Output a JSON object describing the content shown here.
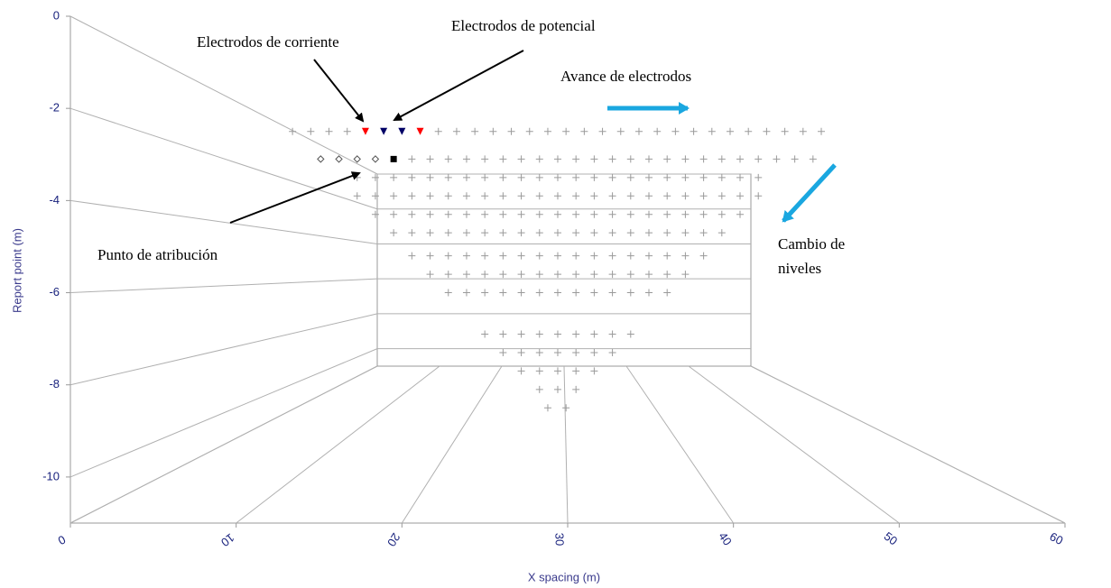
{
  "chart_data": {
    "type": "scatter",
    "xlabel": "X spacing (m)",
    "ylabel": "Report point (m)",
    "xlim": [
      0,
      60
    ],
    "ylim": [
      -11,
      0
    ],
    "xticks": [
      0,
      10,
      20,
      30,
      40,
      50,
      60
    ],
    "yticks": [
      -10,
      -8,
      -6,
      -4,
      -2,
      0
    ],
    "color": "#9a9a9a",
    "series": [
      {
        "y": -2.5,
        "x": [
          13.4,
          14.5,
          15.6,
          16.7,
          22.2,
          23.3,
          24.4,
          25.5,
          26.6,
          27.7,
          28.8,
          29.9,
          31.0,
          32.1,
          33.2,
          34.3,
          35.4,
          36.5,
          37.6,
          38.7,
          39.8,
          40.9,
          42.0,
          43.1,
          44.2,
          45.3
        ]
      },
      {
        "y": -3.1,
        "x": [
          20.6,
          21.7,
          22.8,
          23.9,
          25.0,
          26.1,
          27.2,
          28.3,
          29.4,
          30.5,
          31.6,
          32.7,
          33.8,
          34.9,
          36.0,
          37.1,
          38.2,
          39.3,
          40.4,
          41.5,
          42.6,
          43.7,
          44.8
        ]
      },
      {
        "y": -3.5,
        "x": [
          17.3,
          18.4,
          19.5,
          20.6,
          21.7,
          22.8,
          23.9,
          25.0,
          26.1,
          27.2,
          28.3,
          29.4,
          30.5,
          31.6,
          32.7,
          33.8,
          34.9,
          36.0,
          37.1,
          38.2,
          39.3,
          40.4,
          41.5
        ]
      },
      {
        "y": -3.9,
        "x": [
          17.3,
          18.4,
          19.5,
          20.6,
          21.7,
          22.8,
          23.9,
          25.0,
          26.1,
          27.2,
          28.3,
          29.4,
          30.5,
          31.6,
          32.7,
          33.8,
          34.9,
          36.0,
          37.1,
          38.2,
          39.3,
          40.4,
          41.5
        ]
      },
      {
        "y": -4.3,
        "x": [
          18.4,
          19.5,
          20.6,
          21.7,
          22.8,
          23.9,
          25.0,
          26.1,
          27.2,
          28.3,
          29.4,
          30.5,
          31.6,
          32.7,
          33.8,
          34.9,
          36.0,
          37.1,
          38.2,
          39.3,
          40.4
        ]
      },
      {
        "y": -4.7,
        "x": [
          19.5,
          20.6,
          21.7,
          22.8,
          23.9,
          25.0,
          26.1,
          27.2,
          28.3,
          29.4,
          30.5,
          31.6,
          32.7,
          33.8,
          34.9,
          36.0,
          37.1,
          38.2,
          39.3
        ]
      },
      {
        "y": -5.2,
        "x": [
          20.6,
          21.7,
          22.8,
          23.9,
          25.0,
          26.1,
          27.2,
          28.3,
          29.4,
          30.5,
          31.6,
          32.7,
          33.8,
          34.9,
          36.0,
          37.1,
          38.2
        ]
      },
      {
        "y": -5.6,
        "x": [
          21.7,
          22.8,
          23.9,
          25.0,
          26.1,
          27.2,
          28.3,
          29.4,
          30.5,
          31.6,
          32.7,
          33.8,
          34.9,
          36.0,
          37.1
        ]
      },
      {
        "y": -6.0,
        "x": [
          22.8,
          23.9,
          25.0,
          26.1,
          27.2,
          28.3,
          29.4,
          30.5,
          31.6,
          32.7,
          33.8,
          34.9,
          36.0
        ]
      },
      {
        "y": -6.9,
        "x": [
          25.0,
          26.1,
          27.2,
          28.3,
          29.4,
          30.5,
          31.6,
          32.7,
          33.8
        ]
      },
      {
        "y": -7.3,
        "x": [
          26.1,
          27.2,
          28.3,
          29.4,
          30.5,
          31.6,
          32.7
        ]
      },
      {
        "y": -7.7,
        "x": [
          27.2,
          28.3,
          29.4,
          30.5,
          31.6
        ]
      },
      {
        "y": -8.1,
        "x": [
          28.3,
          29.4,
          30.5
        ]
      },
      {
        "y": -8.5,
        "x": [
          28.8,
          29.9
        ]
      }
    ],
    "current_electrodes": {
      "color": "#ff0000",
      "y": -2.5,
      "x": [
        17.8,
        21.1
      ]
    },
    "potential_electrodes": {
      "color": "#000066",
      "y": -2.5,
      "x": [
        18.9,
        20.0
      ]
    },
    "previous_points": {
      "y": -3.1,
      "x": [
        15.1,
        16.2,
        17.3,
        18.4
      ]
    },
    "report_point": {
      "y": -3.1,
      "x": 19.5
    },
    "annotations": [
      {
        "text": "Electrodos de corriente"
      },
      {
        "text": "Electrodos de potencial"
      },
      {
        "text": "Avance  de electrodos"
      },
      {
        "text": "Cambio  de"
      },
      {
        "text": "niveles"
      },
      {
        "text": "Punto de atribución"
      }
    ]
  }
}
